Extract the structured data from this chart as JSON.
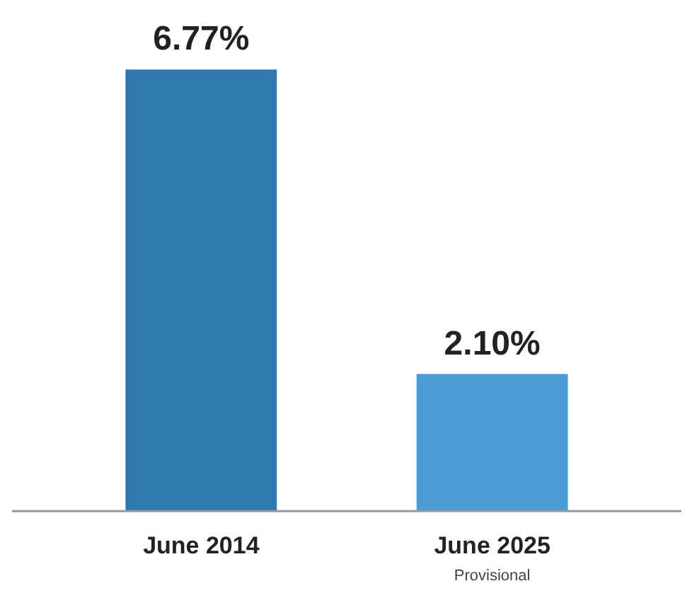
{
  "chart_data": {
    "type": "bar",
    "categories": [
      "June 2014",
      "June 2025"
    ],
    "values": [
      6.77,
      2.1
    ],
    "value_labels": [
      "6.77%",
      "2.10%"
    ],
    "colors": [
      "#2f78b0",
      "#4a9bd6"
    ],
    "tick_labels": "x",
    "annotations": [
      "Provisional"
    ]
  }
}
